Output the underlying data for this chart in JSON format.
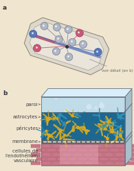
{
  "bg_color": "#f0e6d0",
  "panel_a_label": "a",
  "panel_b_label": "b",
  "annotation_text": "voir détail (en b)",
  "labels_b": [
    "paroi",
    "astrocytes",
    "péricytes",
    "membrane",
    "cellules de\nl'endothélium\nvasculaire"
  ],
  "chip_outer_fc": "#ddd8cc",
  "chip_outer_ec": "#888070",
  "chip_inner_fc": "#eae5da",
  "chip_inner_ec": "#aaa090",
  "channel_blue": "#5070b8",
  "channel_pink": "#c85060",
  "node_grey_fc": "#b0b8c8",
  "node_grey_ec": "#787888",
  "node_blue_fc": "#5878b8",
  "node_blue_ec": "#3858a0",
  "node_pink_fc": "#c85878",
  "node_pink_ec": "#a03858",
  "center_dot": "#303030",
  "wall_fc": "#c0dce8",
  "wall_top_fc": "#d8eef8",
  "wall_right_fc": "#a8c8d8",
  "cell_fc": "#1c6890",
  "astro_color1": "#d8aa20",
  "astro_color2": "#e8c030",
  "mem_fc": "#909090",
  "mem_dash": "#ffffff",
  "brick_fc": "#c87888",
  "brick_ec": "#a05868",
  "brick_inner_fc": "#e8a8b8",
  "box_edge": "#607080",
  "label_color": "#404040",
  "annot_color": "#666666",
  "font_size_labels": 5.0,
  "font_size_panel": 6.5
}
